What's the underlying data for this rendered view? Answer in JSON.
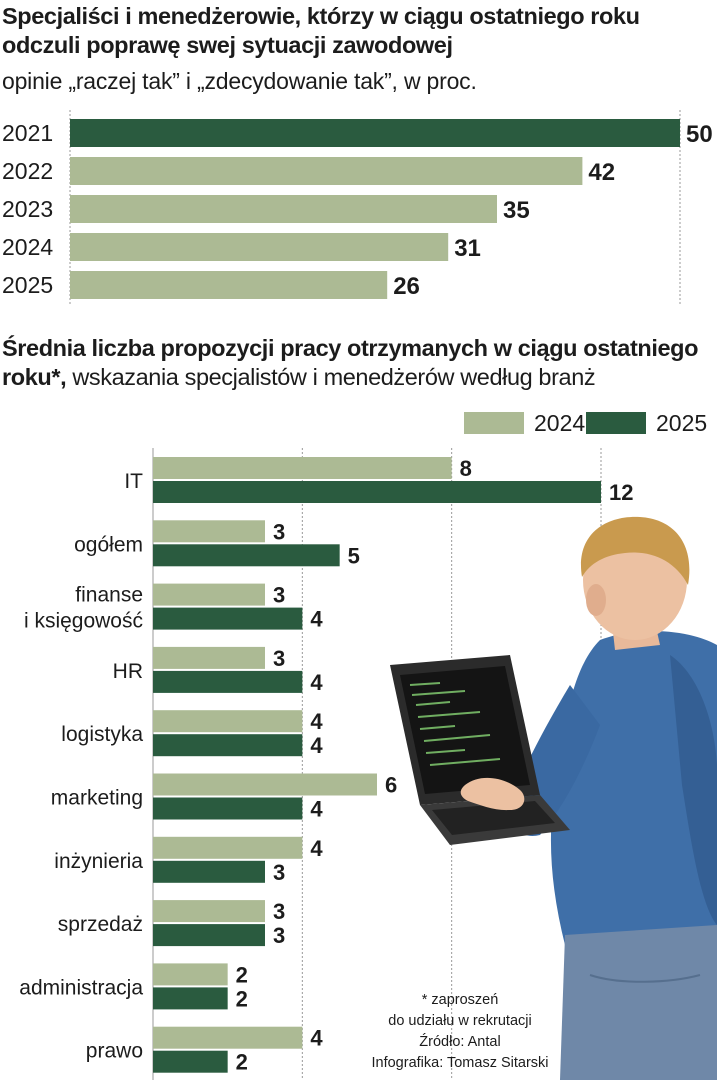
{
  "colors": {
    "light": "#acba94",
    "dark": "#2a5b3f",
    "grid": "#9a9a9a",
    "text": "#1c1c1c"
  },
  "chart_data": [
    {
      "type": "bar",
      "title": "Specjaliści i menedżerowie, którzy w ciągu ostatniego roku odczuli poprawę swej sytuacji zawodowej",
      "subtitle": "opinie „raczej tak” i „zdecydowanie tak”, w proc.",
      "categories": [
        "2021",
        "2022",
        "2023",
        "2024",
        "2025"
      ],
      "values": [
        50,
        42,
        35,
        31,
        26
      ],
      "highlight_index": 0,
      "orientation": "horizontal",
      "xlim": [
        0,
        50
      ]
    },
    {
      "type": "bar",
      "title_bold": "Średnia liczba propozycji pracy otrzymanych w ciągu ostatniego roku*,",
      "title_rest": "wskazania specjalistów i menedżerów według branż",
      "orientation": "horizontal",
      "legend_position": "top-right",
      "categories": [
        "IT",
        "ogółem",
        "finanse\ni księgowość",
        "HR",
        "logistyka",
        "marketing",
        "inżynieria",
        "sprzedaż",
        "administracja",
        "prawo"
      ],
      "series": [
        {
          "name": "2024",
          "values": [
            8,
            3,
            3,
            3,
            4,
            6,
            4,
            3,
            2,
            4
          ]
        },
        {
          "name": "2025",
          "values": [
            12,
            5,
            4,
            4,
            4,
            4,
            3,
            3,
            2,
            2
          ]
        }
      ],
      "xlim": [
        0,
        12
      ]
    }
  ],
  "footnote": {
    "line1": "* zaproszeń",
    "line2": "do udziału w rekrutacji",
    "source": "Źródło: Antal",
    "credit": "Infografika: Tomasz Sitarski"
  }
}
